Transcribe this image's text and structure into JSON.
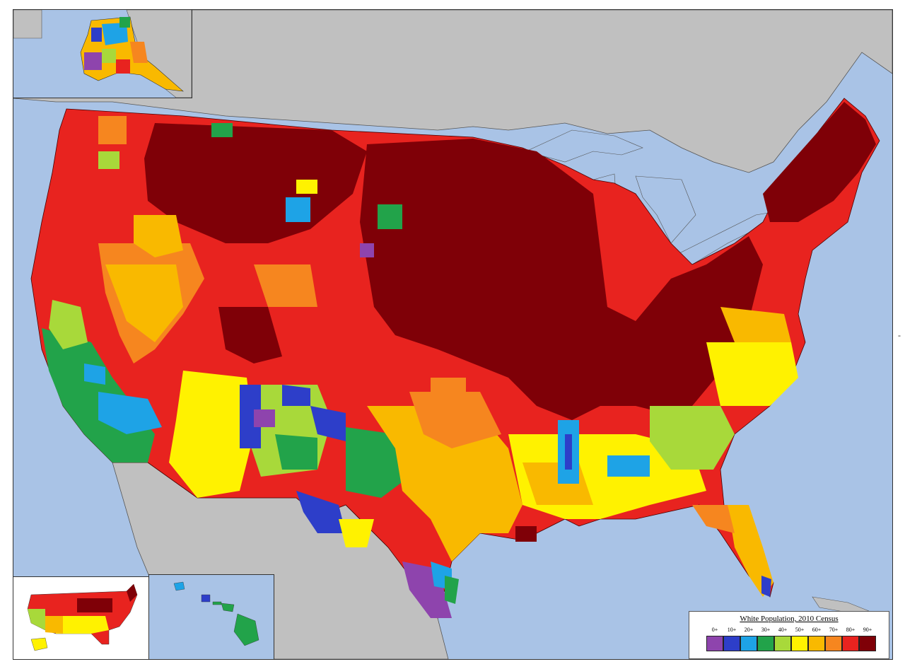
{
  "legend": {
    "title": "White Population, 2010 Census",
    "items": [
      {
        "label": "0+",
        "color": "#8e44ad"
      },
      {
        "label": "10+",
        "color": "#2d3ec9"
      },
      {
        "label": "20+",
        "color": "#1ea3e6"
      },
      {
        "label": "30+",
        "color": "#22a34a"
      },
      {
        "label": "40+",
        "color": "#a8d93a"
      },
      {
        "label": "50+",
        "color": "#fff200"
      },
      {
        "label": "60+",
        "color": "#f9b900"
      },
      {
        "label": "70+",
        "color": "#f6861f"
      },
      {
        "label": "80+",
        "color": "#e8231f"
      },
      {
        "label": "90+",
        "color": "#7f0007"
      }
    ]
  },
  "colors": {
    "water": "#a9c3e6",
    "land_outside": "#c0c0c0"
  },
  "side_mark": "-"
}
